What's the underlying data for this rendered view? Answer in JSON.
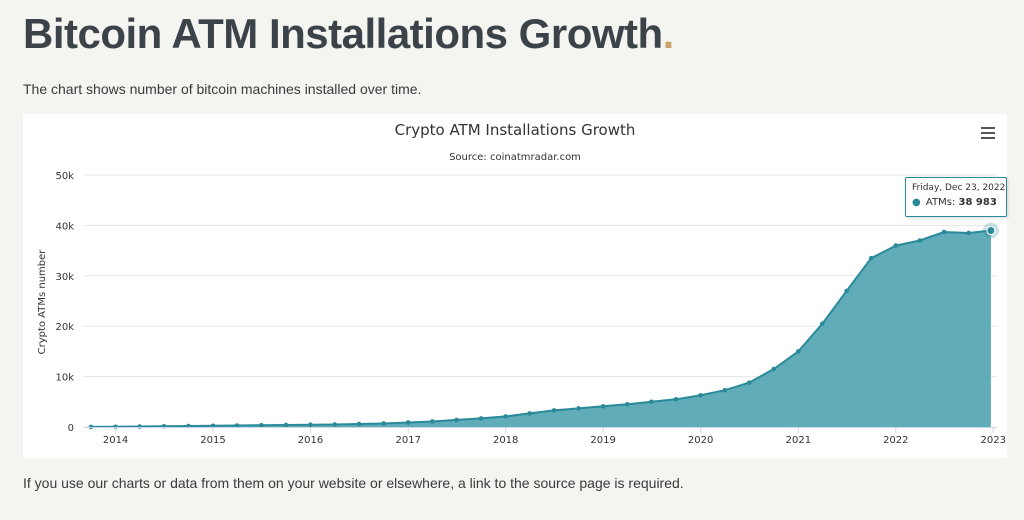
{
  "page": {
    "title": "Bitcoin ATM Installations Growth",
    "title_dot": ".",
    "intro": "The chart shows number of bitcoin machines installed over time.",
    "footer_note": "If you use our charts or data from them on your website or elsewhere, a link to the source page is required."
  },
  "colors": {
    "area_fill": "#4fa3b0",
    "line": "#2a8a9a",
    "accent_dot": "#c9a36b",
    "grid": "#e6e6e6"
  },
  "icons": {
    "menu": "hamburger-menu-icon"
  },
  "tooltip": {
    "date": "Friday, Dec 23, 2022",
    "series": "ATMs",
    "value": "38 983"
  },
  "chart_data": {
    "type": "area",
    "title": "Crypto ATM Installations Growth",
    "subtitle": "Source: coinatmradar.com",
    "ylabel": "Crypto ATMs number",
    "xlabel": "",
    "ylim": [
      0,
      50000
    ],
    "yticks": [
      0,
      10000,
      20000,
      30000,
      40000,
      50000
    ],
    "ytick_labels": [
      "0",
      "10k",
      "20k",
      "30k",
      "40k",
      "50k"
    ],
    "xlim": [
      "2013-09-01",
      "2023-01-15"
    ],
    "xticks": [
      "2014-01-01",
      "2015-01-01",
      "2016-01-01",
      "2017-01-01",
      "2018-01-01",
      "2019-01-01",
      "2020-01-01",
      "2021-01-01",
      "2022-01-01",
      "2023-01-01"
    ],
    "xtick_labels": [
      "2014",
      "2015",
      "2016",
      "2017",
      "2018",
      "2019",
      "2020",
      "2021",
      "2022",
      "2023"
    ],
    "grid": true,
    "legend": "none",
    "series": [
      {
        "name": "ATMs",
        "points": [
          [
            "2013-10-01",
            20
          ],
          [
            "2014-01-01",
            50
          ],
          [
            "2014-04-01",
            100
          ],
          [
            "2014-07-01",
            150
          ],
          [
            "2014-10-01",
            200
          ],
          [
            "2015-01-01",
            250
          ],
          [
            "2015-04-01",
            300
          ],
          [
            "2015-07-01",
            350
          ],
          [
            "2015-10-01",
            400
          ],
          [
            "2016-01-01",
            450
          ],
          [
            "2016-04-01",
            500
          ],
          [
            "2016-07-01",
            600
          ],
          [
            "2016-10-01",
            700
          ],
          [
            "2017-01-01",
            900
          ],
          [
            "2017-04-01",
            1100
          ],
          [
            "2017-07-01",
            1400
          ],
          [
            "2017-10-01",
            1700
          ],
          [
            "2018-01-01",
            2100
          ],
          [
            "2018-04-01",
            2700
          ],
          [
            "2018-07-01",
            3300
          ],
          [
            "2018-10-01",
            3700
          ],
          [
            "2019-01-01",
            4100
          ],
          [
            "2019-04-01",
            4500
          ],
          [
            "2019-07-01",
            5000
          ],
          [
            "2019-10-01",
            5500
          ],
          [
            "2020-01-01",
            6300
          ],
          [
            "2020-04-01",
            7300
          ],
          [
            "2020-07-01",
            8800
          ],
          [
            "2020-10-01",
            11500
          ],
          [
            "2021-01-01",
            15000
          ],
          [
            "2021-04-01",
            20500
          ],
          [
            "2021-07-01",
            27000
          ],
          [
            "2021-10-01",
            33500
          ],
          [
            "2022-01-01",
            36000
          ],
          [
            "2022-04-01",
            37000
          ],
          [
            "2022-07-01",
            38700
          ],
          [
            "2022-10-01",
            38500
          ],
          [
            "2022-12-23",
            38983
          ]
        ]
      }
    ]
  }
}
